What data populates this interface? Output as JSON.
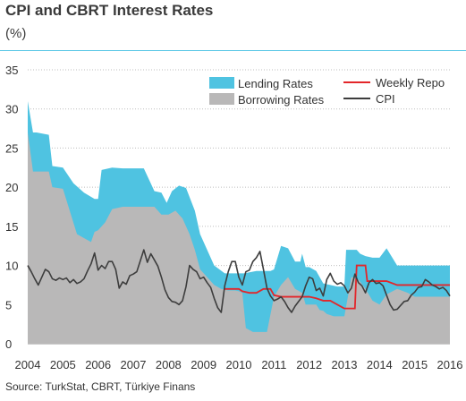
{
  "title": "CPI and CBRT Interest Rates",
  "unit_label": "(%)",
  "source": "Source: TurkStat, CBRT, Türkiye Finans",
  "colors": {
    "lending": "#4fc3e1",
    "borrowing": "#b9b8b8",
    "repo": "#e3262a",
    "cpi": "#3d3d3d",
    "rule": "#5bc7e6",
    "grid": "#bdbdbd"
  },
  "chart_data": {
    "type": "area",
    "xlim": [
      2004,
      2016
    ],
    "ylim": [
      0,
      35
    ],
    "x_ticks": [
      "2004",
      "2005",
      "2006",
      "2007",
      "2008",
      "2009",
      "2010",
      "2011",
      "2012",
      "2013",
      "2014",
      "2015",
      "2016"
    ],
    "y_ticks": [
      "0",
      "5",
      "10",
      "15",
      "20",
      "25",
      "30",
      "35"
    ],
    "legend": {
      "position": "top-right",
      "lending": "Lending Rates",
      "borrowing": "Borrowing Rates",
      "repo": "Weekly Repo",
      "cpi": "CPI"
    },
    "series": [
      {
        "name": "Lending Rates",
        "x": [
          2004.0,
          2004.15,
          2004.25,
          2004.6,
          2004.7,
          2005.0,
          2005.3,
          2005.6,
          2005.9,
          2006.0,
          2006.1,
          2006.4,
          2006.7,
          2007.0,
          2007.3,
          2007.6,
          2007.8,
          2007.95,
          2008.1,
          2008.3,
          2008.5,
          2008.75,
          2008.9,
          2009.1,
          2009.3,
          2009.6,
          2009.9,
          2010.0,
          2010.15,
          2010.5,
          2010.9,
          2011.0,
          2011.2,
          2011.4,
          2011.6,
          2011.75,
          2011.8,
          2011.9,
          2012.0,
          2012.2,
          2012.4,
          2012.6,
          2012.8,
          2013.0,
          2013.05,
          2013.35,
          2013.45,
          2013.6,
          2013.8,
          2014.0,
          2014.2,
          2014.5,
          2014.9,
          2015.5,
          2016.0
        ],
        "values": [
          31,
          27,
          27,
          26.7,
          22.7,
          22.5,
          20.5,
          19.3,
          18.5,
          18.5,
          22.2,
          22.5,
          22.4,
          22.4,
          22.4,
          19.5,
          19.3,
          18,
          19.5,
          20.2,
          19.9,
          17,
          14,
          12,
          10,
          9,
          9,
          9,
          9,
          9.3,
          9.3,
          9.5,
          12.5,
          12.2,
          10.5,
          10.5,
          11.5,
          9.8,
          9.8,
          9.3,
          7.7,
          7.5,
          7.3,
          7.3,
          12,
          12,
          11.5,
          11.2,
          11,
          11,
          12.2,
          10,
          10,
          10,
          10
        ]
      },
      {
        "name": "Borrowing Rates",
        "x": [
          2004.0,
          2004.15,
          2004.5,
          2004.6,
          2004.7,
          2005.0,
          2005.4,
          2005.8,
          2005.9,
          2006.0,
          2006.2,
          2006.4,
          2006.7,
          2007.0,
          2007.3,
          2007.6,
          2007.8,
          2008.0,
          2008.2,
          2008.4,
          2008.6,
          2008.75,
          2008.9,
          2009.1,
          2009.3,
          2009.5,
          2009.7,
          2009.9,
          2010.0,
          2010.1,
          2010.2,
          2010.4,
          2010.6,
          2010.8,
          2011.0,
          2011.2,
          2011.4,
          2011.6,
          2011.8,
          2011.9,
          2012.0,
          2012.2,
          2012.3,
          2012.4,
          2012.5,
          2012.7,
          2012.9,
          2013.0,
          2013.2,
          2013.4,
          2013.6,
          2013.8,
          2014.0,
          2014.2,
          2014.5,
          2014.8,
          2015.0,
          2015.3,
          2015.6,
          2015.8,
          2016.0
        ],
        "values": [
          27,
          22,
          22,
          22,
          20,
          19.8,
          14,
          13,
          14.3,
          14.5,
          15.5,
          17.2,
          17.5,
          17.5,
          17.5,
          17.5,
          16.5,
          16.5,
          17,
          16,
          14,
          12,
          9.5,
          8.5,
          7.5,
          7,
          6.8,
          6.8,
          6.7,
          6.5,
          2,
          1.5,
          1.5,
          1.5,
          6,
          7.5,
          8.5,
          7,
          6.5,
          5,
          5,
          5,
          4.3,
          4.2,
          3.8,
          3.5,
          3.5,
          3.5,
          8.5,
          8.2,
          7,
          5.5,
          5,
          6.3,
          7,
          6.5,
          6,
          6,
          6,
          6,
          6
        ]
      },
      {
        "name": "Weekly Repo",
        "x": [
          2009.6,
          2009.75,
          2010.0,
          2010.1,
          2010.3,
          2010.5,
          2010.7,
          2010.9,
          2011.0,
          2011.2,
          2011.4,
          2011.6,
          2011.8,
          2012.0,
          2012.2,
          2012.4,
          2012.6,
          2012.8,
          2013.0,
          2013.3,
          2013.35,
          2013.5,
          2013.6,
          2013.65,
          2013.8,
          2014.0,
          2014.2,
          2014.5,
          2014.8,
          2015.0,
          2015.3,
          2015.5,
          2015.8,
          2016.0
        ],
        "values": [
          7,
          7,
          7,
          6.7,
          6.5,
          6.5,
          7,
          7,
          6.2,
          6,
          6,
          6,
          6,
          6,
          5.8,
          5.5,
          5.5,
          5,
          4.5,
          4.5,
          10,
          10,
          10,
          8,
          8,
          8,
          8,
          7.5,
          7.5,
          7.5,
          7.5,
          7.5,
          7.5,
          7.5
        ]
      },
      {
        "name": "CPI",
        "x": [
          2004.0,
          2004.1,
          2004.2,
          2004.3,
          2004.4,
          2004.5,
          2004.6,
          2004.7,
          2004.8,
          2004.9,
          2005.0,
          2005.1,
          2005.2,
          2005.3,
          2005.4,
          2005.5,
          2005.6,
          2005.7,
          2005.8,
          2005.9,
          2006.0,
          2006.1,
          2006.2,
          2006.3,
          2006.4,
          2006.5,
          2006.6,
          2006.7,
          2006.8,
          2006.9,
          2007.0,
          2007.1,
          2007.2,
          2007.3,
          2007.4,
          2007.5,
          2007.6,
          2007.7,
          2007.8,
          2007.9,
          2008.0,
          2008.1,
          2008.2,
          2008.3,
          2008.4,
          2008.5,
          2008.6,
          2008.7,
          2008.8,
          2008.9,
          2009.0,
          2009.1,
          2009.2,
          2009.3,
          2009.4,
          2009.5,
          2009.6,
          2009.7,
          2009.8,
          2009.9,
          2010.0,
          2010.1,
          2010.2,
          2010.3,
          2010.4,
          2010.5,
          2010.6,
          2010.7,
          2010.8,
          2010.9,
          2011.0,
          2011.1,
          2011.2,
          2011.3,
          2011.4,
          2011.5,
          2011.6,
          2011.7,
          2011.8,
          2011.9,
          2012.0,
          2012.1,
          2012.2,
          2012.3,
          2012.4,
          2012.5,
          2012.6,
          2012.7,
          2012.8,
          2012.9,
          2013.0,
          2013.1,
          2013.2,
          2013.3,
          2013.4,
          2013.5,
          2013.6,
          2013.7,
          2013.8,
          2013.9,
          2014.0,
          2014.1,
          2014.2,
          2014.3,
          2014.4,
          2014.5,
          2014.6,
          2014.7,
          2014.8,
          2014.9,
          2015.0,
          2015.1,
          2015.2,
          2015.3,
          2015.4,
          2015.5,
          2015.6,
          2015.7,
          2015.8,
          2015.9,
          2016.0
        ],
        "values": [
          10,
          9.2,
          8.3,
          7.5,
          8.5,
          9.5,
          9.2,
          8.3,
          8.1,
          8.4,
          8.2,
          8.4,
          7.8,
          8.2,
          7.7,
          7.9,
          8.3,
          9.3,
          10.2,
          11.6,
          9.4,
          10,
          9.6,
          10.5,
          10.5,
          9.5,
          7.1,
          7.9,
          7.6,
          8.7,
          8.9,
          9.2,
          10.6,
          12,
          10.4,
          11.5,
          10.7,
          9.9,
          8.5,
          6.9,
          5.9,
          5.4,
          5.3,
          5,
          5.5,
          7.3,
          10,
          9.5,
          9.2,
          8.3,
          8.5,
          7.8,
          7.2,
          5.8,
          4.6,
          4,
          7.4,
          9.2,
          10.5,
          10.5,
          8.5,
          7.5,
          9.2,
          9.4,
          10.5,
          11,
          11.8,
          9.5,
          7.1,
          6.1,
          5.5,
          5.7,
          6,
          5.4,
          4.6,
          4,
          4.8,
          5.4,
          6,
          7.4,
          8.5,
          8.3,
          6.8,
          7.1,
          6.1,
          8.2,
          9,
          8,
          7.6,
          7.8,
          7.4,
          6.5,
          7.1,
          8.9,
          7.8,
          7.4,
          6.5,
          7.8,
          8.2,
          7.7,
          7.8,
          7.4,
          6.2,
          5,
          4.3,
          4.4,
          4.9,
          5.4,
          5.5,
          6.2,
          6.6,
          7.2,
          7.3,
          8.2,
          7.9,
          7.5,
          7.3,
          7,
          7.2,
          6.8,
          6.1
        ]
      }
    ]
  }
}
